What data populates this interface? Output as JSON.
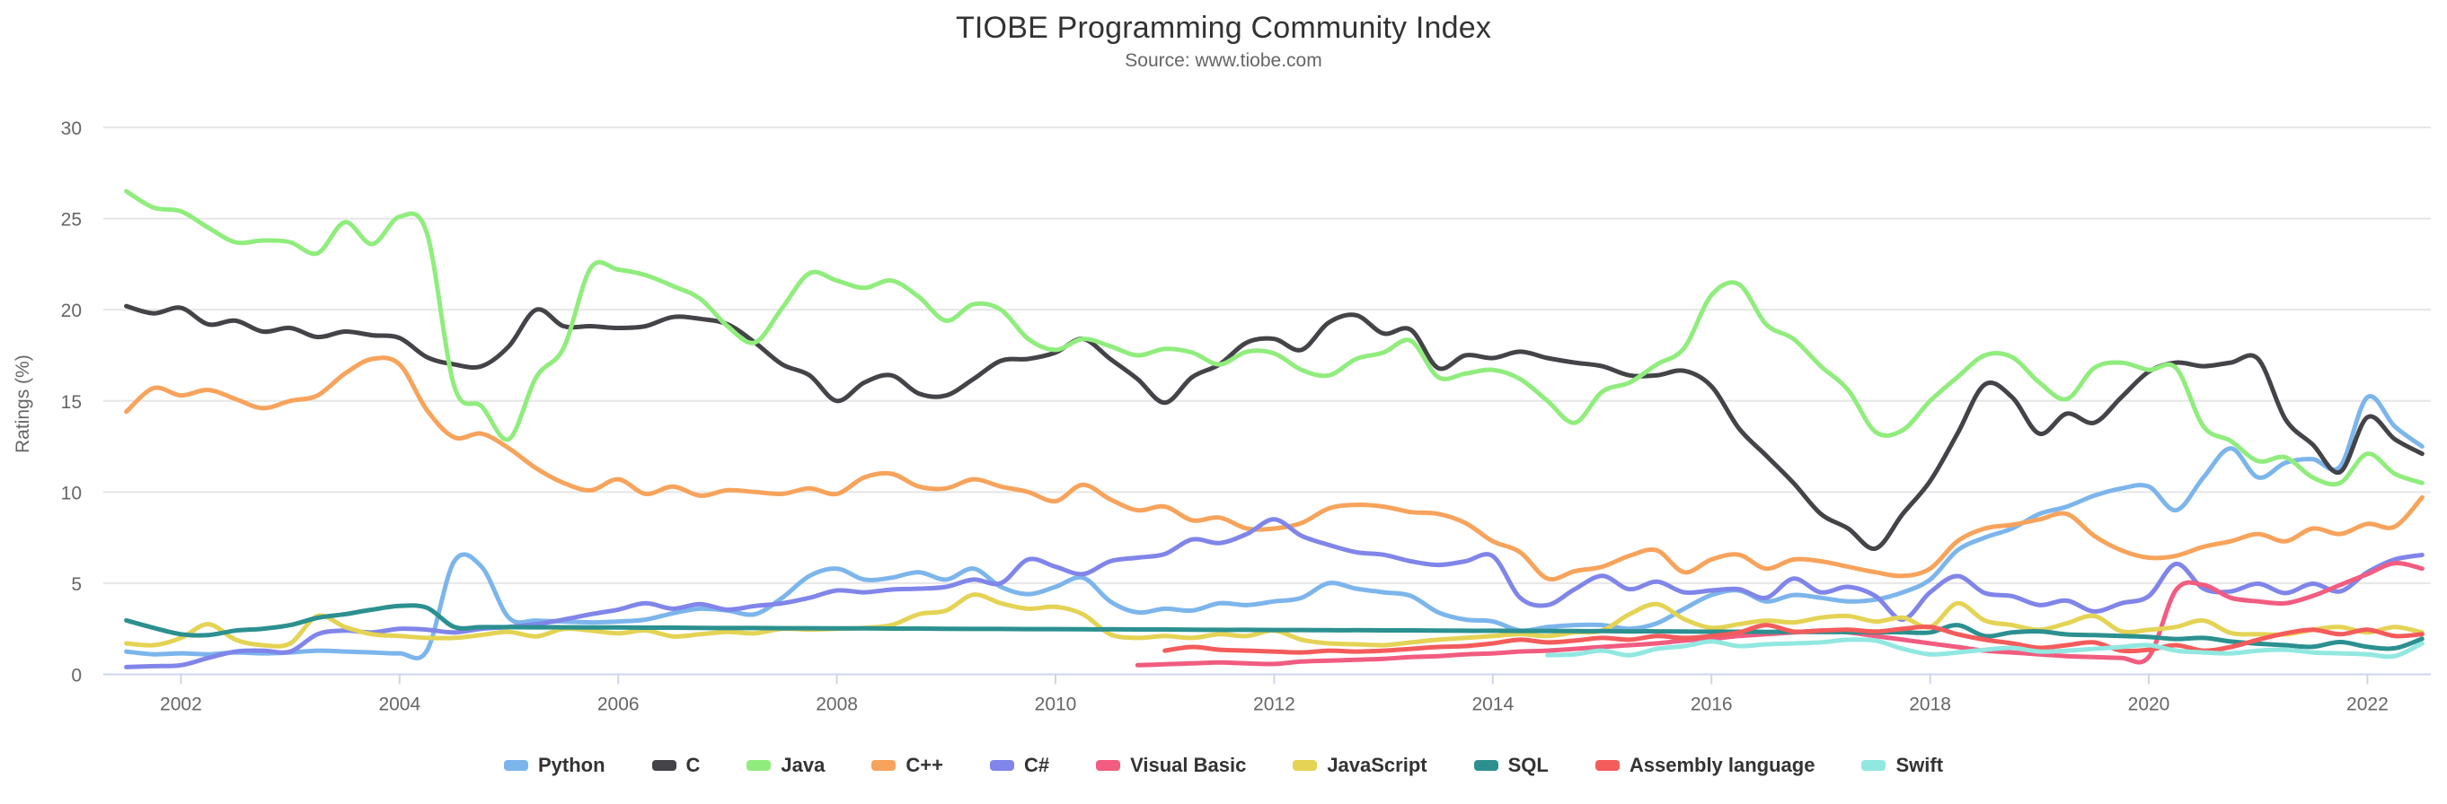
{
  "chart": {
    "title": "TIOBE Programming Community Index",
    "subtitle": "Source: www.tiobe.com",
    "y_axis": {
      "title": "Ratings (%)",
      "ticks": [
        0,
        5,
        10,
        15,
        20,
        25,
        30
      ]
    },
    "x_axis": {
      "ticks": [
        2002,
        2004,
        2006,
        2008,
        2010,
        2012,
        2014,
        2016,
        2018,
        2020,
        2022
      ]
    },
    "colors": {
      "grid": "#e6e6e6",
      "axis_line": "#ccd6eb",
      "tick_label": "#666666",
      "title_text": "#333333"
    }
  },
  "chart_data": {
    "type": "line",
    "title": "TIOBE Programming Community Index",
    "subtitle": "Source: www.tiobe.com",
    "xlabel": "",
    "ylabel": "Ratings (%)",
    "xlim": [
      2001.29,
      2022.58
    ],
    "ylim": [
      0,
      30
    ],
    "y_ticks": [
      0,
      5,
      10,
      15,
      20,
      25,
      30
    ],
    "x_ticks": [
      2002,
      2004,
      2006,
      2008,
      2010,
      2012,
      2014,
      2016,
      2018,
      2020,
      2022
    ],
    "grid": "horizontal-only",
    "legend_position": "bottom",
    "x_unit": "year (monthly index, sampled quarterly)",
    "x_start": 2001.5,
    "x_step": 0.25,
    "series": [
      {
        "name": "Python",
        "color": "#7cb5ec",
        "values": [
          1.25,
          1.1,
          1.15,
          1.1,
          1.2,
          1.15,
          1.2,
          1.3,
          1.25,
          1.2,
          1.15,
          1.3,
          6.2,
          5.9,
          3.1,
          2.95,
          2.9,
          2.85,
          2.9,
          3.0,
          3.35,
          3.6,
          3.5,
          3.3,
          4.2,
          5.4,
          5.8,
          5.2,
          5.3,
          5.6,
          5.2,
          5.8,
          4.8,
          4.4,
          4.8,
          5.3,
          4.0,
          3.4,
          3.6,
          3.5,
          3.9,
          3.8,
          4.0,
          4.2,
          5.0,
          4.7,
          4.5,
          4.3,
          3.4,
          3.0,
          2.9,
          2.4,
          2.6,
          2.7,
          2.7,
          2.5,
          2.8,
          3.6,
          4.35,
          4.6,
          4.0,
          4.35,
          4.2,
          4.0,
          4.1,
          4.5,
          5.2,
          6.8,
          7.5,
          8.0,
          8.8,
          9.2,
          9.8,
          10.2,
          10.3,
          9.0,
          10.8,
          12.4,
          10.8,
          11.6,
          11.8,
          11.4,
          15.2,
          13.6,
          12.5
        ]
      },
      {
        "name": "C",
        "color": "#434348",
        "values": [
          20.2,
          19.8,
          20.1,
          19.2,
          19.4,
          18.8,
          19.0,
          18.5,
          18.8,
          18.6,
          18.45,
          17.4,
          17.0,
          16.9,
          18.0,
          20.0,
          19.1,
          19.1,
          19.0,
          19.1,
          19.6,
          19.5,
          19.2,
          18.2,
          17.0,
          16.4,
          15.0,
          16.0,
          16.4,
          15.4,
          15.3,
          16.2,
          17.2,
          17.3,
          17.65,
          18.4,
          17.3,
          16.2,
          14.9,
          16.3,
          17.0,
          18.2,
          18.4,
          17.8,
          19.3,
          19.7,
          18.7,
          18.9,
          16.8,
          17.5,
          17.35,
          17.7,
          17.35,
          17.1,
          16.9,
          16.4,
          16.4,
          16.65,
          15.8,
          13.5,
          12.0,
          10.5,
          8.8,
          8.0,
          6.9,
          8.8,
          10.6,
          13.2,
          15.9,
          15.2,
          13.2,
          14.3,
          13.8,
          15.2,
          16.6,
          17.1,
          16.9,
          17.1,
          17.3,
          14.0,
          12.6,
          11.1,
          14.1,
          12.9,
          12.1
        ]
      },
      {
        "name": "Java",
        "color": "#90ed7d",
        "values": [
          26.5,
          25.6,
          25.4,
          24.5,
          23.7,
          23.8,
          23.7,
          23.1,
          24.8,
          23.6,
          25.1,
          24.2,
          15.8,
          14.7,
          12.9,
          16.3,
          17.9,
          22.3,
          22.2,
          21.9,
          21.3,
          20.6,
          19.1,
          18.2,
          20.1,
          22.0,
          21.6,
          21.2,
          21.6,
          20.7,
          19.4,
          20.3,
          20.0,
          18.4,
          17.8,
          18.4,
          18.0,
          17.5,
          17.85,
          17.65,
          17.0,
          17.7,
          17.6,
          16.7,
          16.4,
          17.3,
          17.65,
          18.3,
          16.3,
          16.5,
          16.7,
          16.2,
          15.0,
          13.8,
          15.5,
          16.0,
          17.0,
          17.9,
          20.8,
          21.4,
          19.2,
          18.4,
          16.9,
          15.6,
          13.3,
          13.4,
          15.0,
          16.3,
          17.5,
          17.4,
          16.0,
          15.1,
          16.8,
          17.1,
          16.7,
          16.8,
          13.6,
          12.8,
          11.7,
          11.9,
          10.8,
          10.5,
          12.1,
          11.0,
          10.5
        ]
      },
      {
        "name": "C++",
        "color": "#f7a35c",
        "values": [
          14.4,
          15.7,
          15.3,
          15.6,
          15.1,
          14.6,
          15.0,
          15.3,
          16.5,
          17.3,
          17.0,
          14.5,
          13.0,
          13.2,
          12.4,
          11.3,
          10.5,
          10.1,
          10.7,
          9.9,
          10.3,
          9.8,
          10.1,
          10.0,
          9.9,
          10.2,
          9.9,
          10.8,
          11.0,
          10.3,
          10.2,
          10.7,
          10.3,
          10.0,
          9.5,
          10.4,
          9.6,
          9.0,
          9.2,
          8.45,
          8.6,
          8.0,
          8.0,
          8.3,
          9.1,
          9.3,
          9.2,
          8.9,
          8.8,
          8.3,
          7.3,
          6.7,
          5.25,
          5.66,
          5.9,
          6.5,
          6.8,
          5.6,
          6.3,
          6.56,
          5.8,
          6.3,
          6.2,
          5.9,
          5.6,
          5.4,
          5.8,
          7.3,
          8.0,
          8.2,
          8.5,
          8.8,
          7.6,
          6.8,
          6.4,
          6.5,
          7.0,
          7.3,
          7.7,
          7.3,
          8.0,
          7.7,
          8.25,
          8.1,
          9.7
        ]
      },
      {
        "name": "C#",
        "color": "#8085e9",
        "values": [
          0.4,
          0.45,
          0.5,
          0.9,
          1.25,
          1.3,
          1.25,
          2.2,
          2.4,
          2.3,
          2.5,
          2.45,
          2.3,
          2.5,
          2.6,
          2.75,
          3.0,
          3.3,
          3.55,
          3.9,
          3.6,
          3.85,
          3.55,
          3.75,
          3.9,
          4.2,
          4.6,
          4.5,
          4.65,
          4.7,
          4.8,
          5.2,
          5.0,
          6.3,
          5.9,
          5.5,
          6.2,
          6.4,
          6.6,
          7.4,
          7.2,
          7.7,
          8.5,
          7.6,
          7.1,
          6.7,
          6.56,
          6.2,
          6.0,
          6.2,
          6.48,
          4.2,
          3.8,
          4.67,
          5.4,
          4.67,
          5.08,
          4.5,
          4.6,
          4.67,
          4.2,
          5.25,
          4.5,
          4.8,
          4.29,
          3.0,
          4.5,
          5.39,
          4.46,
          4.29,
          3.8,
          4.04,
          3.45,
          3.9,
          4.29,
          6.06,
          4.7,
          4.55,
          4.97,
          4.46,
          4.97,
          4.55,
          5.6,
          6.3,
          6.55
        ]
      },
      {
        "name": "Visual Basic",
        "color": "#f15c80",
        "values": [
          null,
          null,
          null,
          null,
          null,
          null,
          null,
          null,
          null,
          null,
          null,
          null,
          null,
          null,
          null,
          null,
          null,
          null,
          null,
          null,
          null,
          null,
          null,
          null,
          null,
          null,
          null,
          null,
          null,
          null,
          null,
          null,
          null,
          null,
          null,
          null,
          null,
          0.5,
          0.55,
          0.6,
          0.65,
          0.6,
          0.57,
          0.7,
          0.75,
          0.8,
          0.85,
          0.95,
          1.0,
          1.1,
          1.15,
          1.25,
          1.3,
          1.4,
          1.5,
          1.6,
          1.7,
          1.85,
          1.95,
          2.1,
          2.2,
          2.3,
          2.4,
          2.3,
          2.1,
          1.9,
          1.7,
          1.5,
          1.3,
          1.2,
          1.1,
          1.0,
          0.95,
          0.9,
          0.95,
          4.63,
          4.9,
          4.2,
          4.0,
          3.9,
          4.3,
          4.9,
          5.5,
          6.1,
          5.8
        ]
      },
      {
        "name": "JavaScript",
        "color": "#e4d354",
        "values": [
          1.7,
          1.6,
          2.0,
          2.75,
          1.9,
          1.6,
          1.7,
          3.2,
          2.6,
          2.2,
          2.1,
          2.0,
          2.0,
          2.16,
          2.33,
          2.08,
          2.49,
          2.4,
          2.25,
          2.41,
          2.08,
          2.2,
          2.33,
          2.25,
          2.5,
          2.45,
          2.5,
          2.55,
          2.7,
          3.3,
          3.5,
          4.37,
          3.9,
          3.6,
          3.7,
          3.3,
          2.2,
          2.0,
          2.1,
          2.0,
          2.2,
          2.1,
          2.4,
          1.9,
          1.7,
          1.65,
          1.6,
          1.75,
          1.9,
          2.0,
          2.1,
          2.21,
          2.1,
          2.3,
          2.4,
          3.3,
          3.85,
          3.03,
          2.55,
          2.75,
          2.95,
          2.85,
          3.11,
          3.2,
          2.9,
          3.11,
          2.6,
          3.9,
          2.95,
          2.7,
          2.44,
          2.8,
          3.2,
          2.36,
          2.44,
          2.6,
          2.95,
          2.27,
          2.2,
          2.19,
          2.44,
          2.6,
          2.3,
          2.6,
          2.3
        ]
      },
      {
        "name": "SQL",
        "color": "#2b908f",
        "values": [
          2.96,
          2.55,
          2.2,
          2.15,
          2.4,
          2.5,
          2.7,
          3.1,
          3.3,
          3.55,
          3.75,
          3.65,
          2.6,
          2.59,
          2.59,
          2.58,
          2.58,
          2.57,
          2.57,
          2.56,
          2.56,
          2.55,
          2.54,
          2.54,
          2.53,
          2.53,
          2.52,
          2.52,
          2.51,
          2.51,
          2.5,
          2.49,
          2.49,
          2.48,
          2.48,
          2.47,
          2.47,
          2.46,
          2.46,
          2.45,
          2.44,
          2.44,
          2.43,
          2.43,
          2.42,
          2.42,
          2.41,
          2.41,
          2.4,
          2.39,
          2.39,
          2.38,
          2.38,
          2.37,
          2.37,
          2.36,
          2.36,
          2.35,
          2.34,
          2.34,
          2.33,
          2.33,
          2.32,
          2.32,
          2.31,
          2.31,
          2.3,
          2.7,
          2.1,
          2.3,
          2.36,
          2.19,
          2.15,
          2.1,
          2.05,
          1.94,
          2.0,
          1.8,
          1.68,
          1.6,
          1.51,
          1.77,
          1.51,
          1.43,
          1.95
        ]
      },
      {
        "name": "Assembly language",
        "color": "#f45b5b",
        "values": [
          null,
          null,
          null,
          null,
          null,
          null,
          null,
          null,
          null,
          null,
          null,
          null,
          null,
          null,
          null,
          null,
          null,
          null,
          null,
          null,
          null,
          null,
          null,
          null,
          null,
          null,
          null,
          null,
          null,
          null,
          null,
          null,
          null,
          null,
          null,
          null,
          null,
          null,
          1.3,
          1.5,
          1.35,
          1.3,
          1.25,
          1.2,
          1.3,
          1.25,
          1.3,
          1.4,
          1.5,
          1.55,
          1.7,
          1.9,
          1.75,
          1.85,
          2.0,
          1.9,
          2.1,
          2.0,
          2.1,
          2.3,
          2.7,
          2.35,
          2.4,
          2.45,
          2.35,
          2.5,
          2.6,
          2.2,
          1.9,
          1.7,
          1.45,
          1.6,
          1.75,
          1.3,
          1.35,
          1.6,
          1.3,
          1.5,
          1.9,
          2.25,
          2.45,
          2.2,
          2.45,
          2.1,
          2.2
        ]
      },
      {
        "name": "Swift",
        "color": "#91e8e1",
        "values": [
          null,
          null,
          null,
          null,
          null,
          null,
          null,
          null,
          null,
          null,
          null,
          null,
          null,
          null,
          null,
          null,
          null,
          null,
          null,
          null,
          null,
          null,
          null,
          null,
          null,
          null,
          null,
          null,
          null,
          null,
          null,
          null,
          null,
          null,
          null,
          null,
          null,
          null,
          null,
          null,
          null,
          null,
          null,
          null,
          null,
          null,
          null,
          null,
          null,
          null,
          null,
          null,
          1.05,
          1.1,
          1.3,
          1.05,
          1.4,
          1.55,
          1.8,
          1.55,
          1.65,
          1.7,
          1.75,
          1.9,
          1.85,
          1.4,
          1.1,
          1.2,
          1.35,
          1.45,
          1.25,
          1.3,
          1.4,
          1.5,
          1.6,
          1.3,
          1.2,
          1.15,
          1.3,
          1.35,
          1.2,
          1.15,
          1.1,
          1.0,
          1.7
        ]
      }
    ]
  }
}
